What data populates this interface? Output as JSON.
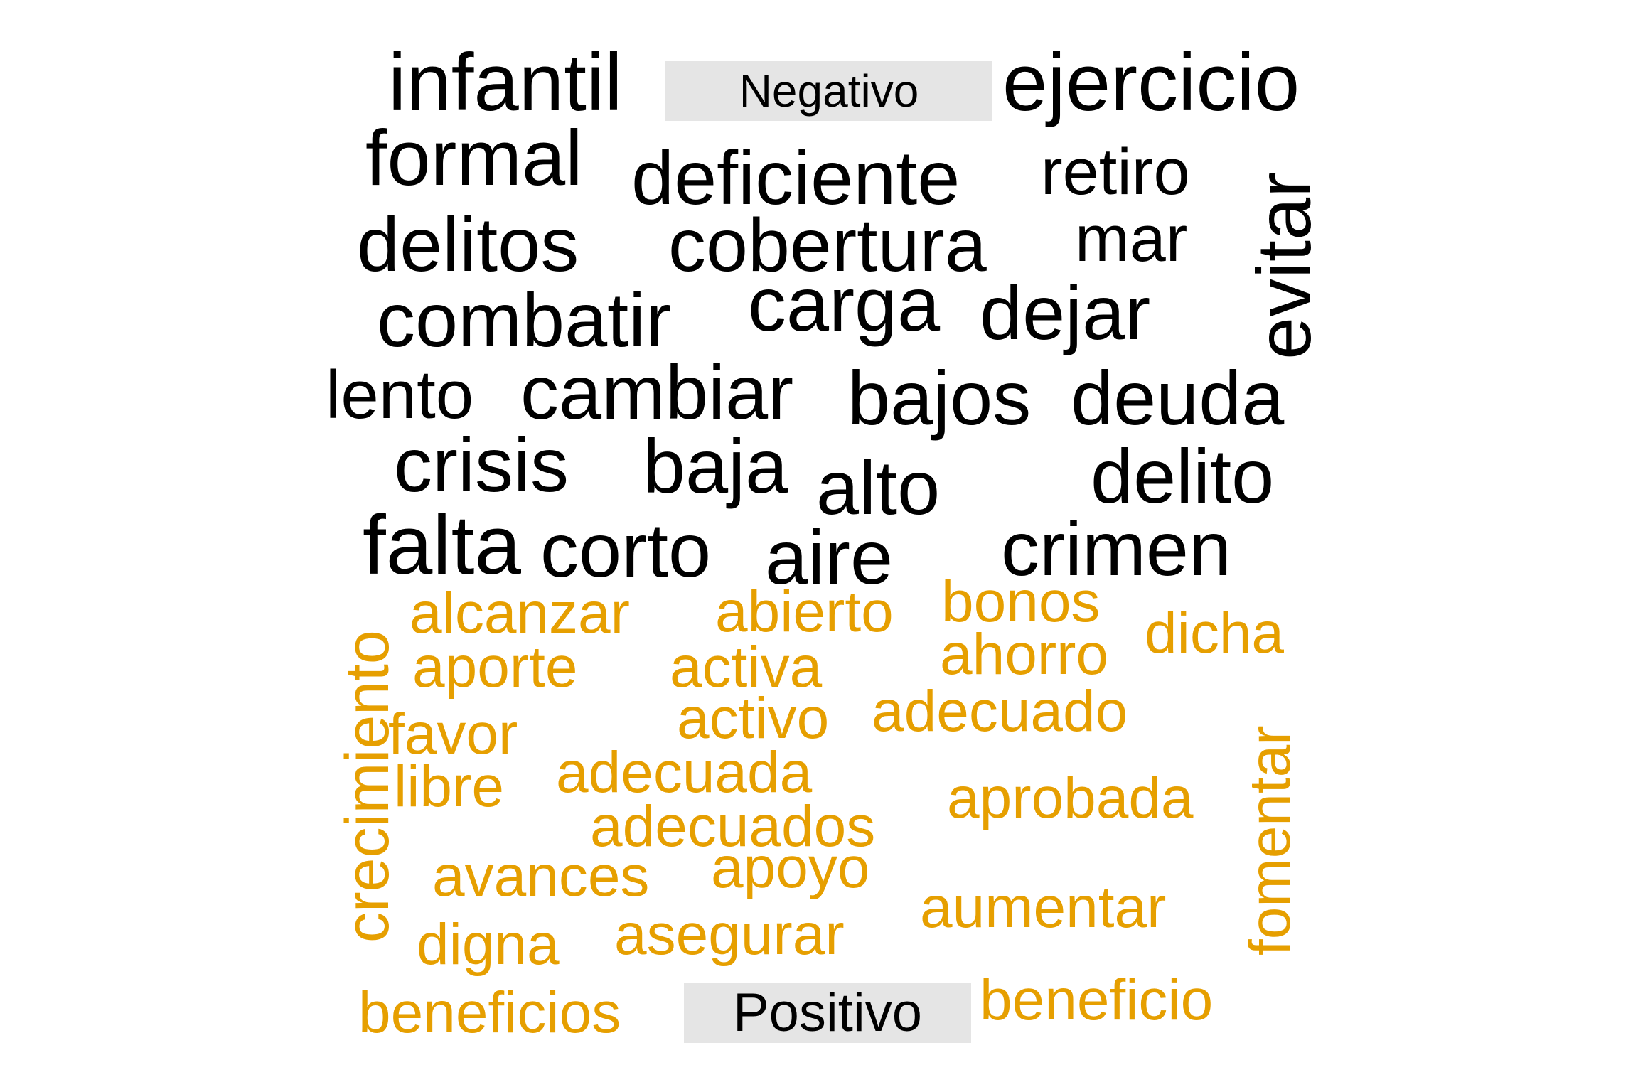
{
  "groups": {
    "negative_label": "Negativo",
    "positive_label": "Positivo"
  },
  "colors": {
    "negative": "#000000",
    "positive": "#E69F00",
    "label_background": "#E5E5E5"
  },
  "negative_words": [
    "infantil",
    "ejercicio",
    "formal",
    "deficiente",
    "retiro",
    "delitos",
    "cobertura",
    "mar",
    "evitar",
    "combatir",
    "carga",
    "dejar",
    "lento",
    "cambiar",
    "bajos",
    "deuda",
    "crisis",
    "baja",
    "alto",
    "delito",
    "falta",
    "corto",
    "aire",
    "crimen"
  ],
  "positive_words": [
    "crecimiento",
    "alcanzar",
    "abierto",
    "bonos",
    "dicha",
    "aporte",
    "activa",
    "ahorro",
    "favor",
    "activo",
    "adecuado",
    "libre",
    "adecuada",
    "aprobada",
    "fomentar",
    "adecuados",
    "avances",
    "apoyo",
    "aumentar",
    "digna",
    "asegurar",
    "beneficios",
    "beneficio"
  ]
}
